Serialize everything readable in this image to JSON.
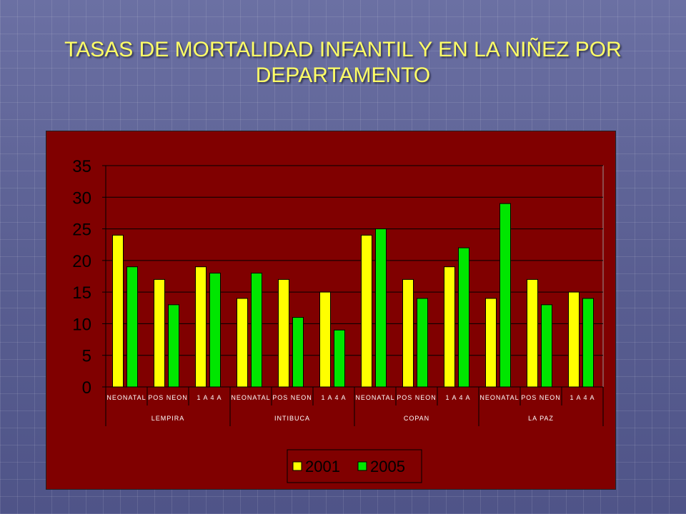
{
  "slide": {
    "title": "TASAS DE MORTALIDAD INFANTIL Y EN LA NIÑEZ POR DEPARTAMENTO"
  },
  "colors": {
    "background": "#5a5f92",
    "title": "#ffff66",
    "plot_area": "#800000",
    "series_2001": "#ffff00",
    "series_2005": "#00e600",
    "legend_bg": "#800000"
  },
  "chart_data": {
    "type": "bar",
    "title": "",
    "xlabel": "",
    "ylabel": "",
    "ylim": [
      0,
      35
    ],
    "yticks": [
      0,
      5,
      10,
      15,
      20,
      25,
      30,
      35
    ],
    "grid": true,
    "legend_position": "bottom",
    "groups": [
      "LEMPIRA",
      "INTIBUCA",
      "COPAN",
      "LA PAZ"
    ],
    "subcategories": [
      "NEONATAL",
      "POS NEON",
      "1 A 4 A"
    ],
    "categories": [
      "NEONATAL",
      "POS NEON",
      "1 A 4 A",
      "NEONATAL",
      "POS NEON",
      "1 A 4 A",
      "NEONATAL",
      "POS NEON",
      "1 A 4 A",
      "NEONATAL",
      "POS NEON",
      "1 A 4 A"
    ],
    "series": [
      {
        "name": "2001",
        "color": "#ffff00",
        "values": [
          24,
          17,
          19,
          14,
          17,
          15,
          24,
          17,
          19,
          14,
          17,
          15
        ]
      },
      {
        "name": "2005",
        "color": "#00e600",
        "values": [
          19,
          13,
          18,
          18,
          11,
          9,
          25,
          14,
          22,
          29,
          13,
          14
        ]
      }
    ]
  }
}
